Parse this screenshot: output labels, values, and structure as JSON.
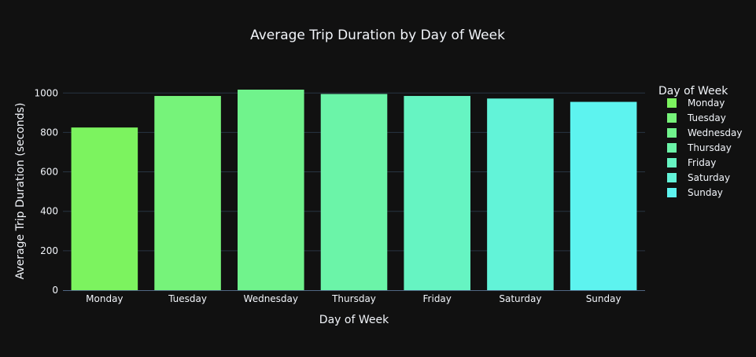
{
  "chart_data": {
    "type": "bar",
    "title": "Average Trip Duration by Day of Week",
    "xlabel": "Day of Week",
    "ylabel": "Average Trip Duration (seconds)",
    "categories": [
      "Monday",
      "Tuesday",
      "Wednesday",
      "Thursday",
      "Friday",
      "Saturday",
      "Sunday"
    ],
    "values": [
      825,
      985,
      1017,
      995,
      985,
      972,
      955
    ],
    "ylim": [
      0,
      1017
    ],
    "yticks": [
      0,
      200,
      400,
      600,
      800,
      1000
    ],
    "grid": true,
    "legend": {
      "title": "Day of Week",
      "placement": "right",
      "items": [
        "Monday",
        "Tuesday",
        "Wednesday",
        "Thursday",
        "Friday",
        "Saturday",
        "Sunday"
      ]
    },
    "colors": [
      "#7cf35f",
      "#76f37a",
      "#70f38c",
      "#6bf4a8",
      "#66f4c2",
      "#62f3d8",
      "#5df3ef"
    ]
  },
  "theme": {
    "background": "#111111",
    "grid_color": "#283442",
    "text_color": "#f2f5fa"
  }
}
